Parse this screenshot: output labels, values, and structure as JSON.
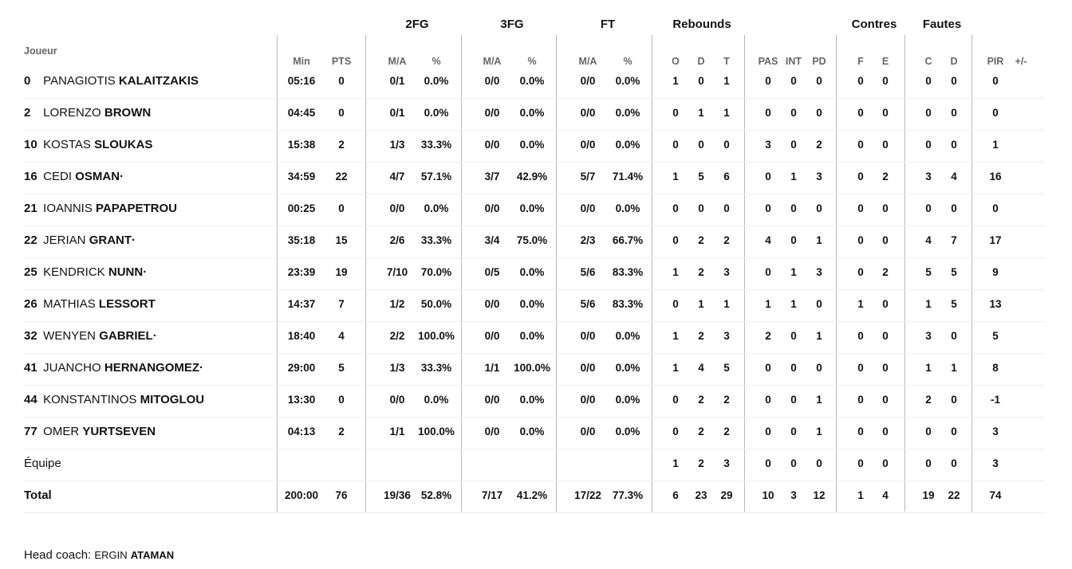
{
  "headers": {
    "joueur": "Joueur",
    "groups": [
      "2FG",
      "3FG",
      "FT",
      "Rebounds",
      "Contres",
      "Fautes"
    ],
    "columns": [
      "Min",
      "PTS",
      "M/A",
      "%",
      "M/A",
      "%",
      "M/A",
      "%",
      "O",
      "D",
      "T",
      "PAS",
      "INT",
      "PD",
      "F",
      "E",
      "C",
      "D",
      "PIR",
      "+/-"
    ]
  },
  "players": [
    {
      "number": "0",
      "first": "PANAGIOTIS",
      "last": "KALAITZAKIS",
      "marker": "",
      "stats": [
        "05:16",
        "0",
        "0/1",
        "0.0%",
        "0/0",
        "0.0%",
        "0/0",
        "0.0%",
        "1",
        "0",
        "1",
        "0",
        "0",
        "0",
        "0",
        "0",
        "0",
        "0",
        "0",
        ""
      ]
    },
    {
      "number": "2",
      "first": "LORENZO",
      "last": "BROWN",
      "marker": "",
      "stats": [
        "04:45",
        "0",
        "0/1",
        "0.0%",
        "0/0",
        "0.0%",
        "0/0",
        "0.0%",
        "0",
        "1",
        "1",
        "0",
        "0",
        "0",
        "0",
        "0",
        "0",
        "0",
        "0",
        ""
      ]
    },
    {
      "number": "10",
      "first": "KOSTAS",
      "last": "SLOUKAS",
      "marker": "",
      "stats": [
        "15:38",
        "2",
        "1/3",
        "33.3%",
        "0/0",
        "0.0%",
        "0/0",
        "0.0%",
        "0",
        "0",
        "0",
        "3",
        "0",
        "2",
        "0",
        "0",
        "0",
        "0",
        "1",
        ""
      ]
    },
    {
      "number": "16",
      "first": "CEDI",
      "last": "OSMAN",
      "marker": "·",
      "stats": [
        "34:59",
        "22",
        "4/7",
        "57.1%",
        "3/7",
        "42.9%",
        "5/7",
        "71.4%",
        "1",
        "5",
        "6",
        "0",
        "1",
        "3",
        "0",
        "2",
        "3",
        "4",
        "16",
        ""
      ]
    },
    {
      "number": "21",
      "first": "IOANNIS",
      "last": "PAPAPETROU",
      "marker": "",
      "stats": [
        "00:25",
        "0",
        "0/0",
        "0.0%",
        "0/0",
        "0.0%",
        "0/0",
        "0.0%",
        "0",
        "0",
        "0",
        "0",
        "0",
        "0",
        "0",
        "0",
        "0",
        "0",
        "0",
        ""
      ]
    },
    {
      "number": "22",
      "first": "JERIAN",
      "last": "GRANT",
      "marker": "·",
      "stats": [
        "35:18",
        "15",
        "2/6",
        "33.3%",
        "3/4",
        "75.0%",
        "2/3",
        "66.7%",
        "0",
        "2",
        "2",
        "4",
        "0",
        "1",
        "0",
        "0",
        "4",
        "7",
        "17",
        ""
      ]
    },
    {
      "number": "25",
      "first": "KENDRICK",
      "last": "NUNN",
      "marker": "·",
      "stats": [
        "23:39",
        "19",
        "7/10",
        "70.0%",
        "0/5",
        "0.0%",
        "5/6",
        "83.3%",
        "1",
        "2",
        "3",
        "0",
        "1",
        "3",
        "0",
        "2",
        "5",
        "5",
        "9",
        ""
      ]
    },
    {
      "number": "26",
      "first": "MATHIAS",
      "last": "LESSORT",
      "marker": "",
      "stats": [
        "14:37",
        "7",
        "1/2",
        "50.0%",
        "0/0",
        "0.0%",
        "5/6",
        "83.3%",
        "0",
        "1",
        "1",
        "1",
        "1",
        "0",
        "1",
        "0",
        "1",
        "5",
        "13",
        ""
      ]
    },
    {
      "number": "32",
      "first": "WENYEN",
      "last": "GABRIEL",
      "marker": "·",
      "stats": [
        "18:40",
        "4",
        "2/2",
        "100.0%",
        "0/0",
        "0.0%",
        "0/0",
        "0.0%",
        "1",
        "2",
        "3",
        "2",
        "0",
        "1",
        "0",
        "0",
        "3",
        "0",
        "5",
        ""
      ]
    },
    {
      "number": "41",
      "first": "JUANCHO",
      "last": "HERNANGOMEZ",
      "marker": "·",
      "stats": [
        "29:00",
        "5",
        "1/3",
        "33.3%",
        "1/1",
        "100.0%",
        "0/0",
        "0.0%",
        "1",
        "4",
        "5",
        "0",
        "0",
        "0",
        "0",
        "0",
        "1",
        "1",
        "8",
        ""
      ]
    },
    {
      "number": "44",
      "first": "KONSTANTINOS",
      "last": "MITOGLOU",
      "marker": "",
      "stats": [
        "13:30",
        "0",
        "0/0",
        "0.0%",
        "0/0",
        "0.0%",
        "0/0",
        "0.0%",
        "0",
        "2",
        "2",
        "0",
        "0",
        "1",
        "0",
        "0",
        "2",
        "0",
        "-1",
        ""
      ]
    },
    {
      "number": "77",
      "first": "OMER",
      "last": "YURTSEVEN",
      "marker": "",
      "stats": [
        "04:13",
        "2",
        "1/1",
        "100.0%",
        "0/0",
        "0.0%",
        "0/0",
        "0.0%",
        "0",
        "2",
        "2",
        "0",
        "0",
        "1",
        "0",
        "0",
        "0",
        "0",
        "3",
        ""
      ]
    }
  ],
  "team_row": {
    "label": "Équipe",
    "stats": [
      "",
      "",
      "",
      "",
      "",
      "",
      "",
      "",
      "1",
      "2",
      "3",
      "0",
      "0",
      "0",
      "0",
      "0",
      "0",
      "0",
      "3",
      ""
    ]
  },
  "total_row": {
    "label": "Total",
    "stats": [
      "200:00",
      "76",
      "19/36",
      "52.8%",
      "7/17",
      "41.2%",
      "17/22",
      "77.3%",
      "6",
      "23",
      "29",
      "10",
      "3",
      "12",
      "1",
      "4",
      "19",
      "22",
      "74",
      ""
    ]
  },
  "coach": {
    "label": "Head coach:",
    "first": "ERGIN",
    "last": "ATAMAN"
  }
}
